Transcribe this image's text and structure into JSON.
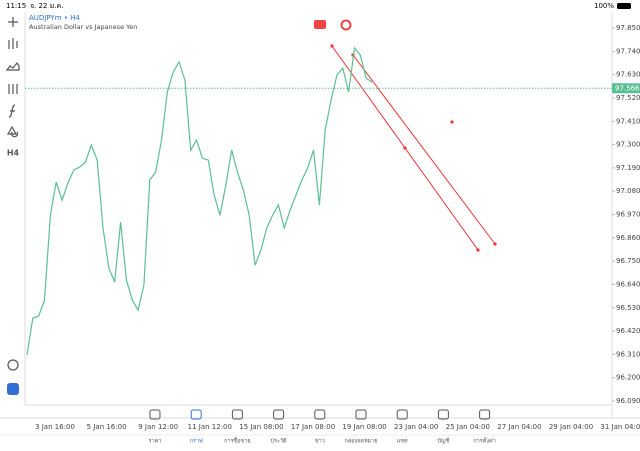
{
  "status": {
    "time": "11:15",
    "date": "จ. 22 ม.ค.",
    "battery": "100%"
  },
  "header": {
    "symbol": "AUDJPYm • H4",
    "description": "Australian Dollar vs Japanese Yen"
  },
  "toolbar": {
    "timeframe": "H4"
  },
  "chart": {
    "type": "line",
    "color": "#5bbf95",
    "values": [
      96.307,
      96.481,
      96.491,
      96.566,
      96.967,
      97.123,
      97.038,
      97.118,
      97.18,
      97.194,
      97.218,
      97.298,
      97.227,
      96.906,
      96.717,
      96.651,
      96.934,
      96.661,
      96.566,
      96.519,
      96.637,
      97.133,
      97.17,
      97.321,
      97.548,
      97.642,
      97.69,
      97.605,
      97.274,
      97.321,
      97.236,
      97.227,
      97.062,
      96.967,
      97.109,
      97.274,
      97.17,
      97.085,
      96.967,
      96.731,
      96.802,
      96.906,
      96.967,
      97.015,
      96.906,
      96.991,
      97.062,
      97.133,
      97.189,
      97.274,
      97.015,
      97.369,
      97.51,
      97.628,
      97.661,
      97.548,
      97.756,
      97.723,
      97.614,
      97.595
    ],
    "ylim": [
      96.071,
      97.926
    ],
    "yticks": [
      {
        "value": 97.85,
        "label": "97.850"
      },
      {
        "value": 97.74,
        "label": "97.740"
      },
      {
        "value": 97.63,
        "label": "97.630"
      },
      {
        "value": 97.52,
        "label": "97.520"
      },
      {
        "value": 97.41,
        "label": "97.410"
      },
      {
        "value": 97.3,
        "label": "97.300"
      },
      {
        "value": 97.19,
        "label": "97.190"
      },
      {
        "value": 97.08,
        "label": "97.080"
      },
      {
        "value": 96.97,
        "label": "96.970"
      },
      {
        "value": 96.86,
        "label": "96.860"
      },
      {
        "value": 96.75,
        "label": "96.750"
      },
      {
        "value": 96.64,
        "label": "96.640"
      },
      {
        "value": 96.53,
        "label": "96.530"
      },
      {
        "value": 96.42,
        "label": "96.420"
      },
      {
        "value": 96.31,
        "label": "96.310"
      },
      {
        "value": 96.2,
        "label": "96.200"
      },
      {
        "value": 96.09,
        "label": "96.090"
      }
    ],
    "current_price": {
      "value": 97.566,
      "label": "97.566"
    },
    "xlabels": [
      "3 Jan 16:00",
      "5 Jan 16:00",
      "9 Jan 12:00",
      "11 Jan 12:00",
      "15 Jan 08:00",
      "17 Jan 08:00",
      "19 Jan 08:00",
      "23 Jan 04:00",
      "25 Jan 04:00",
      "27 Jan 04:00",
      "29 Jan 04:00",
      "31 Jan 04:00"
    ]
  },
  "nav": [
    "ราคา",
    "กราฟ",
    "การซื้อขาย",
    "ประวัติ",
    "ข่าว",
    "กล่องจดหมาย",
    "แชท",
    "บัญชี",
    "การตั้งค่า"
  ]
}
